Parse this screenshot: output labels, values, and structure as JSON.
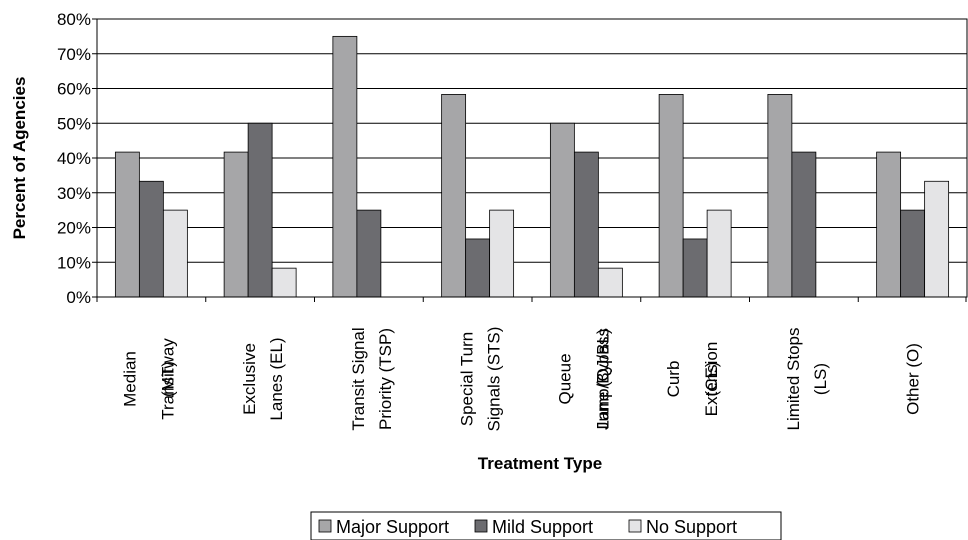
{
  "chart_data": {
    "type": "bar",
    "title": "",
    "xlabel": "Treatment Type",
    "ylabel": "Percent of Agencies",
    "ylim": [
      0,
      80
    ],
    "yticks": [
      0,
      10,
      20,
      30,
      40,
      50,
      60,
      70,
      80
    ],
    "ytick_labels": [
      "0%",
      "10%",
      "20%",
      "30%",
      "40%",
      "50%",
      "60%",
      "70%",
      "80%"
    ],
    "categories": [
      "Median Transitway (MT)",
      "Exclusive Lanes (EL)",
      "Transit Signal Priority (TSP)",
      "Special Turn Signals (STS)",
      "Queue Jump/Bypass Lane (QJ/BL)",
      "Curb Extension (CE)",
      "Limited Stops (LS)",
      "Other (O)"
    ],
    "category_lines": [
      [
        "Median",
        "Transitway",
        "(MT)"
      ],
      [
        "Exclusive",
        "Lanes (EL)"
      ],
      [
        "Transit Signal",
        "Priority (TSP)"
      ],
      [
        "Special Turn",
        "Signals (STS)"
      ],
      [
        "Queue",
        "Jump/Bypass",
        "Lane (QJ/BL)"
      ],
      [
        "Curb",
        "Extension",
        "(CE)"
      ],
      [
        "Limited Stops",
        "(LS)"
      ],
      [
        "Other (O)"
      ]
    ],
    "series": [
      {
        "name": "Major Support",
        "color": "#a6a6a8",
        "values": [
          41.7,
          41.7,
          75.0,
          58.3,
          50.0,
          58.3,
          58.3,
          41.7
        ]
      },
      {
        "name": "Mild Support",
        "color": "#6c6c70",
        "values": [
          33.3,
          50.0,
          25.0,
          16.7,
          41.7,
          16.7,
          41.7,
          25.0
        ]
      },
      {
        "name": "No Support",
        "color": "#e4e4e6",
        "values": [
          25.0,
          8.3,
          0,
          25.0,
          8.3,
          25.0,
          0,
          33.3
        ]
      }
    ],
    "grid": true,
    "legend_position": "bottom-center"
  }
}
